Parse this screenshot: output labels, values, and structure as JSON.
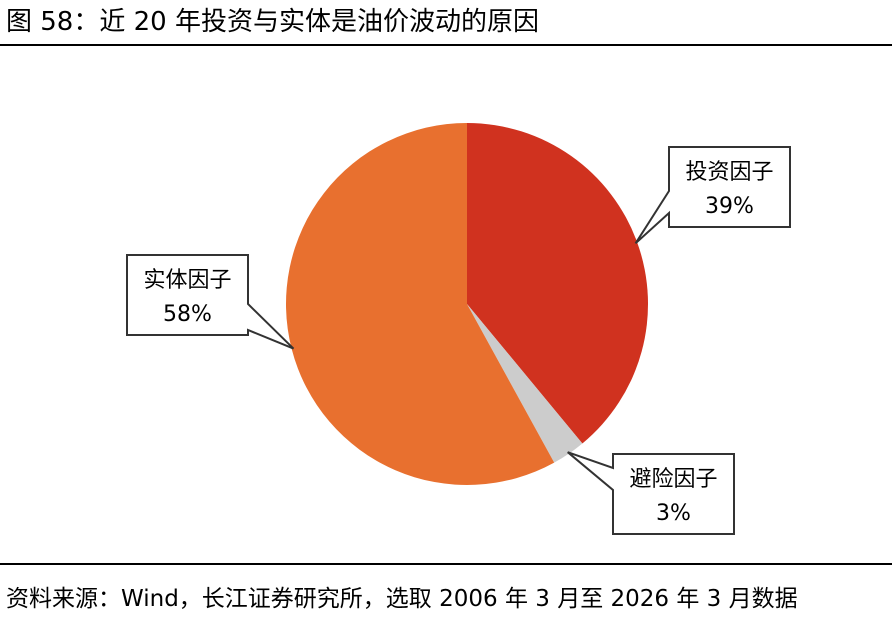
{
  "header": {
    "title": "图 58：近 20 年投资与实体是油价波动的原因"
  },
  "footer": {
    "source": "资料来源：Wind，长江证券研究所，选取 2006 年 3 月至 2026 年 3 月数据"
  },
  "chart_data": {
    "type": "pie",
    "title": "",
    "slices": [
      {
        "label": "投资因子",
        "value": 39,
        "value_label": "39%",
        "color": "#d0321f"
      },
      {
        "label": "避险因子",
        "value": 3,
        "value_label": "3%",
        "color": "#cccccc"
      },
      {
        "label": "实体因子",
        "value": 58,
        "value_label": "58%",
        "color": "#e8702f"
      }
    ],
    "start_angle_deg": 0,
    "direction": "clockwise"
  }
}
